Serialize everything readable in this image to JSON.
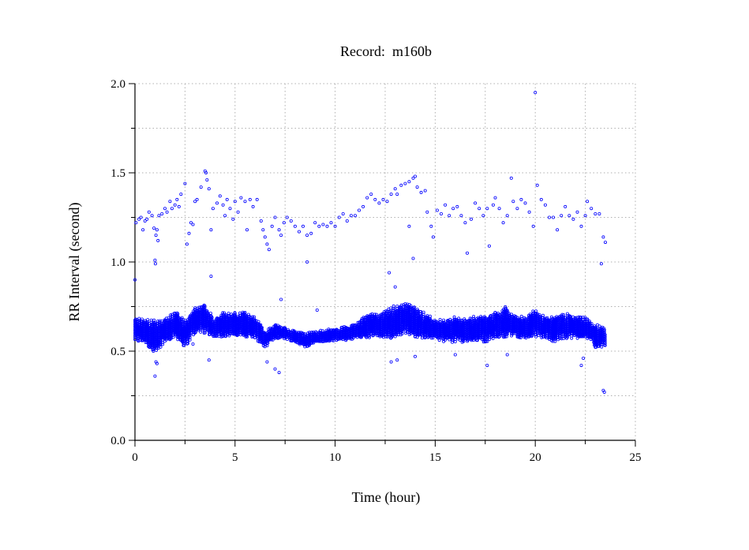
{
  "chart_data": {
    "type": "scatter",
    "title": "Record:  m160b",
    "xlabel": "Time (hour)",
    "ylabel": "RR Interval (second)",
    "xlim": [
      0,
      25
    ],
    "ylim": [
      0,
      2.0
    ],
    "xticks": [
      "0",
      "5",
      "10",
      "15",
      "20",
      "25"
    ],
    "xtick_values": [
      0,
      5,
      10,
      15,
      20,
      25
    ],
    "yticks": [
      "0.0",
      "0.5",
      "1.0",
      "1.5",
      "2.0"
    ],
    "ytick_values": [
      0,
      0.5,
      1.0,
      1.5,
      2.0
    ],
    "x_minor_step": 2.5,
    "y_minor_step": 0.25,
    "grid": true,
    "marker": "open-circle",
    "color": "#0000ff",
    "main_band_bin_hours": 0.5,
    "main_band": [
      [
        0,
        0.55,
        0.7
      ],
      [
        0.5,
        0.55,
        0.68
      ],
      [
        1.0,
        0.47,
        0.68
      ],
      [
        1.5,
        0.55,
        0.7
      ],
      [
        2.0,
        0.58,
        0.73
      ],
      [
        2.5,
        0.52,
        0.68
      ],
      [
        3.0,
        0.6,
        0.75
      ],
      [
        3.5,
        0.6,
        0.77
      ],
      [
        4.0,
        0.58,
        0.68
      ],
      [
        4.5,
        0.58,
        0.73
      ],
      [
        5.0,
        0.58,
        0.72
      ],
      [
        5.5,
        0.58,
        0.72
      ],
      [
        6.0,
        0.57,
        0.7
      ],
      [
        6.5,
        0.52,
        0.62
      ],
      [
        7.0,
        0.57,
        0.66
      ],
      [
        7.5,
        0.57,
        0.64
      ],
      [
        8.0,
        0.55,
        0.62
      ],
      [
        8.5,
        0.52,
        0.6
      ],
      [
        9.0,
        0.55,
        0.62
      ],
      [
        9.5,
        0.55,
        0.62
      ],
      [
        10.0,
        0.56,
        0.63
      ],
      [
        10.5,
        0.56,
        0.64
      ],
      [
        11.0,
        0.57,
        0.66
      ],
      [
        11.5,
        0.57,
        0.7
      ],
      [
        12.0,
        0.58,
        0.72
      ],
      [
        12.5,
        0.56,
        0.73
      ],
      [
        13.0,
        0.58,
        0.76
      ],
      [
        13.5,
        0.6,
        0.78
      ],
      [
        14.0,
        0.58,
        0.75
      ],
      [
        14.5,
        0.57,
        0.72
      ],
      [
        15.0,
        0.57,
        0.68
      ],
      [
        15.5,
        0.55,
        0.68
      ],
      [
        16.0,
        0.55,
        0.7
      ],
      [
        16.5,
        0.55,
        0.69
      ],
      [
        17.0,
        0.56,
        0.7
      ],
      [
        17.5,
        0.55,
        0.7
      ],
      [
        18.0,
        0.57,
        0.72
      ],
      [
        18.5,
        0.58,
        0.75
      ],
      [
        19.0,
        0.58,
        0.7
      ],
      [
        19.5,
        0.57,
        0.7
      ],
      [
        20.0,
        0.58,
        0.74
      ],
      [
        20.5,
        0.57,
        0.7
      ],
      [
        21.0,
        0.55,
        0.7
      ],
      [
        21.5,
        0.57,
        0.72
      ],
      [
        22.0,
        0.57,
        0.7
      ],
      [
        22.5,
        0.58,
        0.7
      ],
      [
        23.0,
        0.52,
        0.65
      ]
    ],
    "points": [
      [
        0.0,
        0.9
      ],
      [
        0.05,
        1.22
      ],
      [
        0.2,
        1.24
      ],
      [
        0.3,
        1.25
      ],
      [
        0.4,
        1.18
      ],
      [
        0.5,
        1.23
      ],
      [
        0.6,
        1.24
      ],
      [
        0.7,
        1.28
      ],
      [
        0.85,
        1.26
      ],
      [
        0.95,
        1.19
      ],
      [
        1.0,
        1.01
      ],
      [
        1.02,
        0.99
      ],
      [
        1.05,
        1.15
      ],
      [
        1.1,
        1.18
      ],
      [
        1.15,
        1.12
      ],
      [
        1.2,
        1.26
      ],
      [
        1.35,
        1.27
      ],
      [
        1.5,
        1.3
      ],
      [
        1.6,
        1.28
      ],
      [
        1.75,
        1.34
      ],
      [
        1.85,
        1.3
      ],
      [
        2.0,
        1.32
      ],
      [
        2.1,
        1.35
      ],
      [
        2.2,
        1.31
      ],
      [
        2.3,
        1.38
      ],
      [
        2.5,
        1.44
      ],
      [
        2.6,
        1.1
      ],
      [
        2.7,
        1.16
      ],
      [
        2.8,
        1.22
      ],
      [
        2.9,
        1.21
      ],
      [
        3.0,
        1.34
      ],
      [
        3.1,
        1.35
      ],
      [
        3.3,
        1.42
      ],
      [
        3.5,
        1.51
      ],
      [
        3.55,
        1.5
      ],
      [
        3.6,
        1.46
      ],
      [
        3.7,
        1.41
      ],
      [
        3.8,
        1.18
      ],
      [
        3.9,
        1.3
      ],
      [
        4.1,
        1.33
      ],
      [
        4.25,
        1.37
      ],
      [
        4.4,
        1.32
      ],
      [
        4.5,
        1.26
      ],
      [
        4.6,
        1.35
      ],
      [
        4.75,
        1.3
      ],
      [
        4.9,
        1.24
      ],
      [
        5.0,
        1.34
      ],
      [
        5.15,
        1.28
      ],
      [
        5.3,
        1.36
      ],
      [
        5.5,
        1.34
      ],
      [
        5.6,
        1.18
      ],
      [
        5.75,
        1.35
      ],
      [
        5.9,
        1.31
      ],
      [
        6.1,
        1.35
      ],
      [
        6.3,
        1.23
      ],
      [
        6.4,
        1.18
      ],
      [
        6.5,
        1.14
      ],
      [
        6.6,
        1.1
      ],
      [
        6.7,
        1.07
      ],
      [
        6.85,
        1.2
      ],
      [
        7.0,
        1.25
      ],
      [
        7.2,
        1.18
      ],
      [
        7.3,
        1.15
      ],
      [
        7.45,
        1.22
      ],
      [
        7.6,
        1.25
      ],
      [
        7.8,
        1.23
      ],
      [
        8.0,
        1.2
      ],
      [
        8.2,
        1.17
      ],
      [
        8.4,
        1.2
      ],
      [
        8.6,
        1.15
      ],
      [
        8.8,
        1.16
      ],
      [
        9.0,
        1.22
      ],
      [
        9.2,
        1.2
      ],
      [
        9.4,
        1.21
      ],
      [
        9.6,
        1.2
      ],
      [
        9.8,
        1.22
      ],
      [
        10.0,
        1.2
      ],
      [
        10.2,
        1.25
      ],
      [
        10.4,
        1.27
      ],
      [
        10.6,
        1.23
      ],
      [
        10.8,
        1.26
      ],
      [
        11.0,
        1.26
      ],
      [
        11.2,
        1.29
      ],
      [
        11.4,
        1.31
      ],
      [
        11.6,
        1.36
      ],
      [
        11.8,
        1.38
      ],
      [
        12.0,
        1.35
      ],
      [
        12.2,
        1.33
      ],
      [
        12.4,
        1.35
      ],
      [
        12.6,
        1.34
      ],
      [
        12.8,
        1.38
      ],
      [
        13.0,
        1.41
      ],
      [
        13.1,
        1.38
      ],
      [
        13.3,
        1.43
      ],
      [
        13.5,
        1.44
      ],
      [
        13.7,
        1.45
      ],
      [
        13.9,
        1.47
      ],
      [
        14.0,
        1.48
      ],
      [
        14.1,
        1.42
      ],
      [
        14.3,
        1.39
      ],
      [
        14.5,
        1.4
      ],
      [
        14.6,
        1.28
      ],
      [
        14.8,
        1.2
      ],
      [
        14.9,
        1.14
      ],
      [
        15.1,
        1.29
      ],
      [
        15.3,
        1.27
      ],
      [
        15.5,
        1.32
      ],
      [
        15.7,
        1.26
      ],
      [
        15.9,
        1.3
      ],
      [
        16.1,
        1.31
      ],
      [
        16.3,
        1.26
      ],
      [
        16.5,
        1.22
      ],
      [
        16.6,
        1.05
      ],
      [
        16.8,
        1.24
      ],
      [
        17.0,
        1.33
      ],
      [
        17.2,
        1.3
      ],
      [
        17.4,
        1.26
      ],
      [
        17.6,
        1.3
      ],
      [
        17.7,
        1.09
      ],
      [
        17.9,
        1.32
      ],
      [
        18.0,
        1.36
      ],
      [
        18.2,
        1.3
      ],
      [
        18.4,
        1.22
      ],
      [
        18.6,
        1.26
      ],
      [
        18.8,
        1.47
      ],
      [
        18.9,
        1.34
      ],
      [
        19.1,
        1.3
      ],
      [
        19.3,
        1.35
      ],
      [
        19.5,
        1.33
      ],
      [
        19.7,
        1.28
      ],
      [
        19.9,
        1.2
      ],
      [
        20.0,
        1.95
      ],
      [
        20.1,
        1.43
      ],
      [
        20.3,
        1.35
      ],
      [
        20.5,
        1.32
      ],
      [
        20.7,
        1.25
      ],
      [
        20.9,
        1.25
      ],
      [
        21.1,
        1.18
      ],
      [
        21.3,
        1.26
      ],
      [
        21.5,
        1.31
      ],
      [
        21.7,
        1.26
      ],
      [
        21.9,
        1.24
      ],
      [
        22.1,
        1.28
      ],
      [
        22.3,
        1.2
      ],
      [
        22.5,
        1.26
      ],
      [
        22.6,
        1.34
      ],
      [
        22.8,
        1.3
      ],
      [
        23.0,
        1.27
      ],
      [
        23.2,
        1.27
      ],
      [
        23.3,
        0.99
      ],
      [
        23.4,
        1.14
      ],
      [
        23.5,
        1.11
      ],
      [
        1.0,
        0.36
      ],
      [
        1.05,
        0.44
      ],
      [
        1.1,
        0.43
      ],
      [
        3.7,
        0.45
      ],
      [
        3.8,
        0.92
      ],
      [
        6.6,
        0.44
      ],
      [
        7.0,
        0.4
      ],
      [
        7.2,
        0.38
      ],
      [
        7.3,
        0.79
      ],
      [
        8.6,
        1.0
      ],
      [
        9.1,
        0.73
      ],
      [
        12.7,
        0.94
      ],
      [
        12.8,
        0.44
      ],
      [
        13.0,
        0.86
      ],
      [
        13.1,
        0.45
      ],
      [
        13.7,
        1.2
      ],
      [
        13.9,
        1.02
      ],
      [
        14.0,
        0.47
      ],
      [
        16.0,
        0.48
      ],
      [
        17.6,
        0.42
      ],
      [
        18.6,
        0.48
      ],
      [
        22.3,
        0.42
      ],
      [
        22.4,
        0.46
      ],
      [
        23.4,
        0.28
      ],
      [
        23.45,
        0.27
      ],
      [
        2.9,
        0.54
      ],
      [
        0.4,
        0.56
      ]
    ]
  }
}
